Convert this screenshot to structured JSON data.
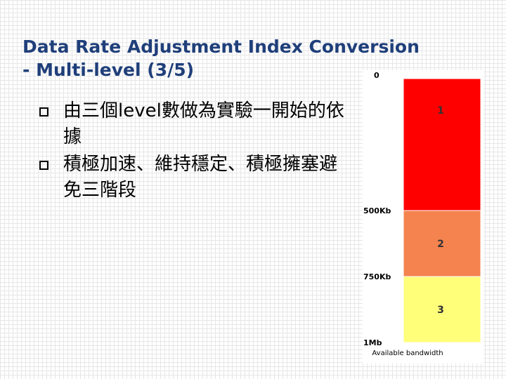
{
  "slide": {
    "title": "Data Rate Adjustment Index Conversion\n- Multi-level (3/5)",
    "bullets": [
      "由三個level數做為實驗一開始的依據",
      "積極加速、維持穩定、積極擁塞避免三階段"
    ]
  },
  "chart_data": {
    "type": "bar",
    "orientation": "vertical-stacked",
    "xlabel": "Available bandwidth",
    "scale_labels": [
      "0",
      "500Kb",
      "750Kb",
      "1Mb"
    ],
    "segments": [
      {
        "label": "1",
        "from": 0,
        "to": 500,
        "color": "#ff0000"
      },
      {
        "label": "2",
        "from": 500,
        "to": 750,
        "color": "#f5834f"
      },
      {
        "label": "3",
        "from": 750,
        "to": 1000,
        "color": "#ffff7a"
      }
    ],
    "range_kb": [
      0,
      1000
    ]
  }
}
